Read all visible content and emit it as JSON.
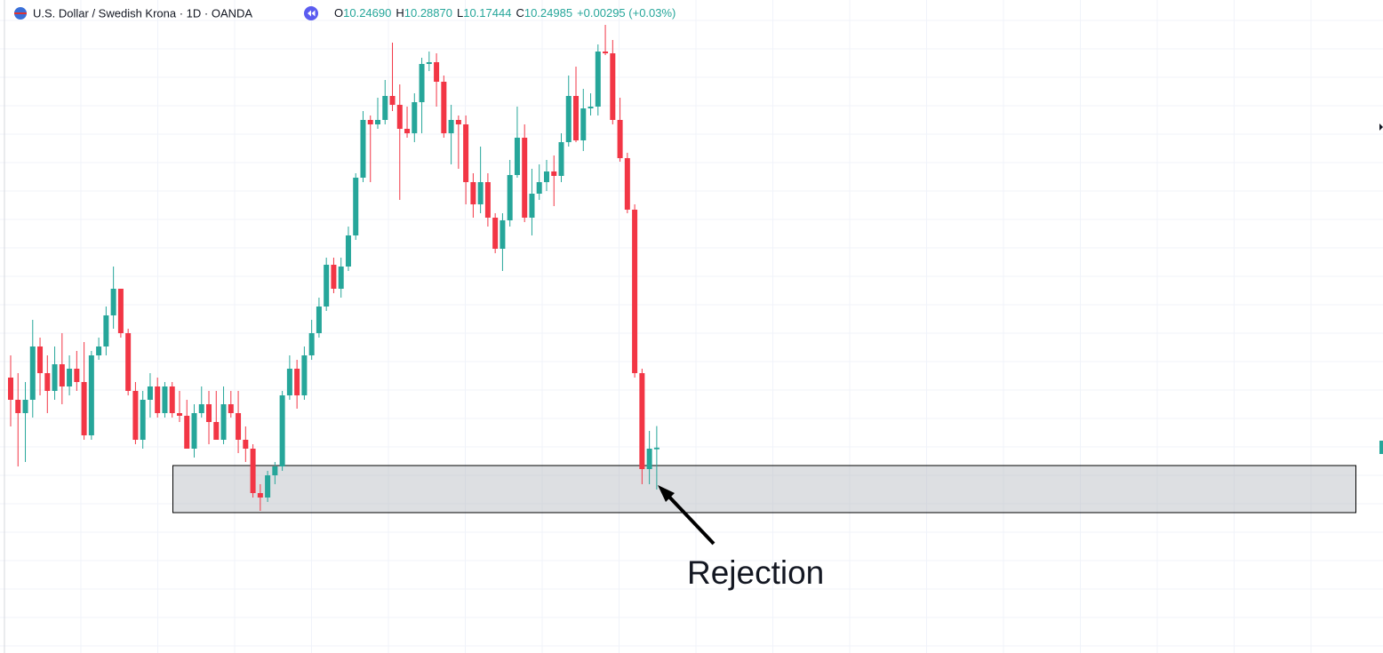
{
  "chart_data": {
    "type": "candlestick",
    "title": "U.S. Dollar / Swedish Krona · 1D · OANDA",
    "ohlc_readout": [
      {
        "key": "O",
        "value": "10.24690"
      },
      {
        "key": "H",
        "value": "10.28870"
      },
      {
        "key": "L",
        "value": "10.17444"
      },
      {
        "key": "C",
        "value": "10.24985"
      }
    ],
    "change": "+0.00295 (+0.03%)",
    "annotation": "Rejection",
    "up_color": "#26a69a",
    "down_color": "#f23645",
    "ylim": [
      9.88,
      11.056
    ],
    "grid": true,
    "zone": [
      10.1328,
      10.2176
    ],
    "open": [
      10.376,
      10.336,
      10.312,
      10.336,
      10.432,
      10.384,
      10.352,
      10.4,
      10.36,
      10.392,
      10.368,
      10.272,
      10.416,
      10.432,
      10.488,
      10.536,
      10.456,
      10.352,
      10.264,
      10.336,
      10.36,
      10.312,
      10.36,
      10.312,
      10.3072,
      10.248,
      10.312,
      10.328,
      10.296,
      10.264,
      10.328,
      10.312,
      10.264,
      10.248,
      10.168,
      10.16,
      10.2,
      10.216,
      10.344,
      10.392,
      10.344,
      10.416,
      10.456,
      10.504,
      10.5792,
      10.536,
      10.576,
      10.632,
      10.736,
      10.84,
      10.832,
      10.84,
      10.8832,
      10.8672,
      10.824,
      10.816,
      10.872,
      10.9408,
      10.944,
      10.9088,
      10.816,
      10.84,
      10.832,
      10.728,
      10.688,
      10.728,
      10.664,
      10.608,
      10.6592,
      10.7408,
      10.808,
      10.664,
      10.7072,
      10.728,
      10.7472,
      10.7392,
      10.8,
      10.8832,
      10.8032,
      10.8608,
      10.864,
      10.9632,
      10.96,
      10.84,
      10.7712,
      10.6784,
      10.384,
      10.2112,
      10.2469
    ],
    "high": [
      10.416,
      10.384,
      10.368,
      10.48,
      10.448,
      10.416,
      10.432,
      10.456,
      10.416,
      10.424,
      10.44,
      10.424,
      10.448,
      10.504,
      10.576,
      10.536,
      10.464,
      10.368,
      10.352,
      10.384,
      10.376,
      10.368,
      10.368,
      10.352,
      10.336,
      10.328,
      10.36,
      10.352,
      10.352,
      10.36,
      10.352,
      10.352,
      10.288,
      10.256,
      10.184,
      10.208,
      10.224,
      10.352,
      10.416,
      10.408,
      10.432,
      10.48,
      10.52,
      10.592,
      10.592,
      10.592,
      10.648,
      10.744,
      10.856,
      10.848,
      10.88,
      10.912,
      10.9792,
      10.904,
      10.864,
      10.888,
      10.952,
      10.9632,
      10.96,
      10.92,
      10.8672,
      10.848,
      10.848,
      10.744,
      10.792,
      10.744,
      10.672,
      10.672,
      10.768,
      10.864,
      10.832,
      10.752,
      10.76,
      10.768,
      10.776,
      10.816,
      10.92,
      10.936,
      10.896,
      10.888,
      10.976,
      11.0112,
      10.984,
      10.88,
      10.7808,
      10.688,
      10.392,
      10.28,
      10.2887
    ],
    "low": [
      10.288,
      10.216,
      10.224,
      10.304,
      10.344,
      10.312,
      10.336,
      10.328,
      10.344,
      10.352,
      10.264,
      10.264,
      10.408,
      10.416,
      10.464,
      10.448,
      10.344,
      10.256,
      10.248,
      10.304,
      10.304,
      10.304,
      10.304,
      10.296,
      10.248,
      10.232,
      10.304,
      10.256,
      10.264,
      10.256,
      10.304,
      10.24,
      10.224,
      10.16,
      10.136,
      10.152,
      10.184,
      10.208,
      10.336,
      10.32,
      10.336,
      10.408,
      10.448,
      10.496,
      10.528,
      10.52,
      10.568,
      10.624,
      10.728,
      10.728,
      10.824,
      10.832,
      10.856,
      10.696,
      10.808,
      10.8,
      10.816,
      10.928,
      10.864,
      10.808,
      10.76,
      10.752,
      10.688,
      10.664,
      10.672,
      10.648,
      10.6,
      10.568,
      10.648,
      10.736,
      10.656,
      10.632,
      10.696,
      10.712,
      10.6848,
      10.728,
      10.792,
      10.8,
      10.784,
      10.848,
      10.848,
      10.9568,
      10.832,
      10.7648,
      10.672,
      10.376,
      10.184,
      10.184,
      10.17444
    ],
    "close": [
      10.336,
      10.312,
      10.336,
      10.432,
      10.384,
      10.352,
      10.4,
      10.36,
      10.392,
      10.368,
      10.272,
      10.416,
      10.432,
      10.488,
      10.536,
      10.456,
      10.352,
      10.264,
      10.336,
      10.36,
      10.312,
      10.36,
      10.312,
      10.3072,
      10.248,
      10.312,
      10.328,
      10.296,
      10.264,
      10.328,
      10.312,
      10.264,
      10.248,
      10.168,
      10.16,
      10.2,
      10.216,
      10.344,
      10.392,
      10.344,
      10.416,
      10.456,
      10.504,
      10.5792,
      10.536,
      10.576,
      10.632,
      10.736,
      10.84,
      10.832,
      10.84,
      10.8832,
      10.8672,
      10.824,
      10.816,
      10.872,
      10.9408,
      10.944,
      10.9088,
      10.816,
      10.84,
      10.832,
      10.728,
      10.688,
      10.728,
      10.664,
      10.608,
      10.6592,
      10.7408,
      10.808,
      10.664,
      10.7072,
      10.728,
      10.7472,
      10.7392,
      10.8,
      10.8832,
      10.8032,
      10.8608,
      10.864,
      10.9632,
      10.96,
      10.84,
      10.7712,
      10.6784,
      10.384,
      10.2112,
      10.248,
      10.24985
    ]
  }
}
